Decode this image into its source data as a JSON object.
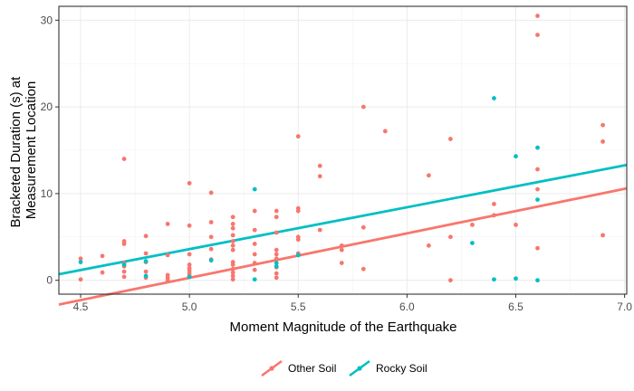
{
  "chart_data": {
    "type": "scatter",
    "xlabel": "Moment Magnitude of the Earthquake",
    "ylabel_lines": [
      "Bracketed Duration (s) at",
      "Measurement Location"
    ],
    "xlim": [
      4.4,
      7.01
    ],
    "ylim": [
      -1.6,
      31.6
    ],
    "x_ticks": [
      4.5,
      5.0,
      5.5,
      6.0,
      6.5,
      7.0
    ],
    "x_tick_labels": [
      "4.5",
      "5.0",
      "5.5",
      "6.0",
      "6.5",
      "7.0"
    ],
    "y_ticks": [
      0,
      10,
      20,
      30
    ],
    "y_tick_labels": [
      "0",
      "10",
      "20",
      "30"
    ],
    "grid": true,
    "legend_position": "bottom",
    "series": [
      {
        "name": "Other Soil",
        "color": "#F8766D",
        "points": [
          [
            4.5,
            2.5
          ],
          [
            4.5,
            0.1
          ],
          [
            4.6,
            2.8
          ],
          [
            4.6,
            0.9
          ],
          [
            4.7,
            14.0
          ],
          [
            4.7,
            4.5
          ],
          [
            4.7,
            4.2
          ],
          [
            4.7,
            2.0
          ],
          [
            4.7,
            1.6
          ],
          [
            4.7,
            1.0
          ],
          [
            4.7,
            0.4
          ],
          [
            4.8,
            5.1
          ],
          [
            4.8,
            3.1
          ],
          [
            4.8,
            2.1
          ],
          [
            4.8,
            1.0
          ],
          [
            4.8,
            0.3
          ],
          [
            4.9,
            6.5
          ],
          [
            4.9,
            2.9
          ],
          [
            4.9,
            0.6
          ],
          [
            4.9,
            0.3
          ],
          [
            4.9,
            0.0
          ],
          [
            5.0,
            11.2
          ],
          [
            5.0,
            6.3
          ],
          [
            5.0,
            3.0
          ],
          [
            5.0,
            1.8
          ],
          [
            5.0,
            1.4
          ],
          [
            5.0,
            1.1
          ],
          [
            5.0,
            0.8
          ],
          [
            5.0,
            0.5
          ],
          [
            5.1,
            10.1
          ],
          [
            5.1,
            6.7
          ],
          [
            5.1,
            5.0
          ],
          [
            5.1,
            3.6
          ],
          [
            5.1,
            2.4
          ],
          [
            5.2,
            7.3
          ],
          [
            5.2,
            6.5
          ],
          [
            5.2,
            6.0
          ],
          [
            5.2,
            5.2
          ],
          [
            5.2,
            4.5
          ],
          [
            5.2,
            4.0
          ],
          [
            5.2,
            3.5
          ],
          [
            5.2,
            2.1
          ],
          [
            5.2,
            1.8
          ],
          [
            5.2,
            1.3
          ],
          [
            5.2,
            0.9
          ],
          [
            5.2,
            0.5
          ],
          [
            5.2,
            0.1
          ],
          [
            5.3,
            8.0
          ],
          [
            5.3,
            5.8
          ],
          [
            5.3,
            4.2
          ],
          [
            5.3,
            3.0
          ],
          [
            5.3,
            2.0
          ],
          [
            5.3,
            1.2
          ],
          [
            5.4,
            8.0
          ],
          [
            5.4,
            7.3
          ],
          [
            5.4,
            5.5
          ],
          [
            5.4,
            3.5
          ],
          [
            5.4,
            3.0
          ],
          [
            5.4,
            2.5
          ],
          [
            5.4,
            1.5
          ],
          [
            5.4,
            0.8
          ],
          [
            5.4,
            0.3
          ],
          [
            5.5,
            16.6
          ],
          [
            5.5,
            8.3
          ],
          [
            5.5,
            8.0
          ],
          [
            5.5,
            5.0
          ],
          [
            5.5,
            4.7
          ],
          [
            5.5,
            3.1
          ],
          [
            5.6,
            13.2
          ],
          [
            5.6,
            12.0
          ],
          [
            5.6,
            5.8
          ],
          [
            5.7,
            4.0
          ],
          [
            5.7,
            3.5
          ],
          [
            5.7,
            2.0
          ],
          [
            5.8,
            20.0
          ],
          [
            5.8,
            6.1
          ],
          [
            5.8,
            1.3
          ],
          [
            5.9,
            17.2
          ],
          [
            6.1,
            12.1
          ],
          [
            6.1,
            4.0
          ],
          [
            6.2,
            16.3
          ],
          [
            6.2,
            5.0
          ],
          [
            6.2,
            0.0
          ],
          [
            6.3,
            6.4
          ],
          [
            6.4,
            8.8
          ],
          [
            6.4,
            7.5
          ],
          [
            6.5,
            6.4
          ],
          [
            6.6,
            30.5
          ],
          [
            6.6,
            28.3
          ],
          [
            6.6,
            12.8
          ],
          [
            6.6,
            10.5
          ],
          [
            6.6,
            3.7
          ],
          [
            6.9,
            17.9
          ],
          [
            6.9,
            16.0
          ],
          [
            6.9,
            5.2
          ]
        ],
        "fit": [
          [
            4.4,
            -2.8
          ],
          [
            7.01,
            10.6
          ]
        ]
      },
      {
        "name": "Rocky Soil",
        "color": "#00BFC4",
        "points": [
          [
            4.5,
            2.1
          ],
          [
            4.7,
            1.8
          ],
          [
            4.8,
            2.2
          ],
          [
            4.8,
            0.5
          ],
          [
            5.0,
            0.4
          ],
          [
            5.1,
            2.3
          ],
          [
            5.3,
            10.5
          ],
          [
            5.3,
            0.1
          ],
          [
            5.4,
            2.0
          ],
          [
            5.4,
            1.6
          ],
          [
            5.5,
            2.9
          ],
          [
            6.3,
            4.3
          ],
          [
            6.4,
            21.0
          ],
          [
            6.4,
            0.1
          ],
          [
            6.5,
            14.3
          ],
          [
            6.5,
            0.2
          ],
          [
            6.6,
            15.3
          ],
          [
            6.6,
            9.3
          ],
          [
            6.6,
            0.0
          ]
        ],
        "fit": [
          [
            4.4,
            0.7
          ],
          [
            7.01,
            13.3
          ]
        ]
      }
    ]
  }
}
